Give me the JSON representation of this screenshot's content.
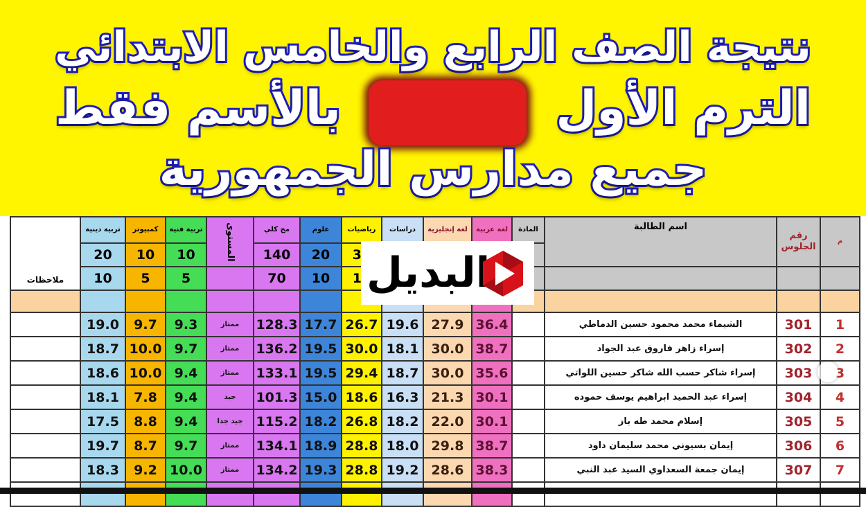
{
  "banner": {
    "line1": "نتيجة الصف الرابع والخامس الابتدائي",
    "line2_right": "الترم الأول",
    "line2_left": "بالأسم فقط",
    "line3": "جميع مدارس الجمهورية",
    "background": "#fff500",
    "text_outline": "#1f1fc0",
    "redaction_color": "#e21d1d"
  },
  "logo": {
    "text": "البديل",
    "icon": "red-hexagon-play-icon"
  },
  "table": {
    "headers": {
      "notes": "ملاحظات",
      "religion": "تربية دينية",
      "computer": "كمبيوتر",
      "art": "تربية فنية",
      "level": "المستوى",
      "total": "مج كلي",
      "science": "علوم",
      "math": "رياضيات",
      "studies": "دراسات",
      "english": "لغة إنجليزية",
      "arabic": "لغة عربية",
      "subject": "المادة",
      "name": "اسم الطالبة",
      "seat": "رقم الجلوس",
      "index": "م"
    },
    "max_marks": {
      "religion": "20",
      "computer": "10",
      "art": "10",
      "total": "140",
      "science": "20",
      "math": "30"
    },
    "min_marks": {
      "religion": "10",
      "computer": "5",
      "art": "5",
      "total": "70",
      "science": "10",
      "math": "15"
    },
    "column_colors": {
      "religion": "#a8d8ee",
      "computer": "#f7b500",
      "art": "#44dd55",
      "level": "#d877f0",
      "total": "#d877f0",
      "science": "#3d85d8",
      "math": "#fff200",
      "studies": "#c9dff5",
      "english": "#fbd8b0",
      "arabic": "#f070c0"
    },
    "rows": [
      {
        "index": "1",
        "seat": "301",
        "name": "الشيماء محمد محمود حسين الدماطي",
        "arabic": "36.4",
        "english": "27.9",
        "studies": "19.6",
        "math": "26.7",
        "science": "17.7",
        "total": "128.3",
        "level": "ممتاز",
        "art": "9.3",
        "computer": "9.7",
        "religion": "19.0"
      },
      {
        "index": "2",
        "seat": "302",
        "name": "إسراء زاهر فاروق عبد الجواد",
        "arabic": "38.7",
        "english": "30.0",
        "studies": "18.1",
        "math": "30.0",
        "science": "19.5",
        "total": "136.2",
        "level": "ممتاز",
        "art": "9.7",
        "computer": "10.0",
        "religion": "18.7"
      },
      {
        "index": "3",
        "seat": "303",
        "name": "إسراء شاكر حسب الله شاكر حسين اللواتي",
        "arabic": "35.6",
        "english": "30.0",
        "studies": "18.7",
        "math": "29.4",
        "science": "19.5",
        "total": "133.1",
        "level": "ممتاز",
        "art": "9.4",
        "computer": "10.0",
        "religion": "18.6"
      },
      {
        "index": "4",
        "seat": "304",
        "name": "إسراء عبد الحميد ابراهيم يوسف حموده",
        "arabic": "30.1",
        "english": "21.3",
        "studies": "16.3",
        "math": "18.6",
        "science": "15.0",
        "total": "101.3",
        "level": "جيد",
        "art": "9.4",
        "computer": "7.8",
        "religion": "18.1"
      },
      {
        "index": "5",
        "seat": "305",
        "name": "إسلام محمد طه باز",
        "arabic": "30.1",
        "english": "22.0",
        "studies": "18.2",
        "math": "26.8",
        "science": "18.2",
        "total": "115.2",
        "level": "جيد جدا",
        "art": "9.4",
        "computer": "8.8",
        "religion": "17.5"
      },
      {
        "index": "6",
        "seat": "306",
        "name": "إيمان بسيوني محمد سليمان داود",
        "arabic": "38.7",
        "english": "29.8",
        "studies": "18.0",
        "math": "28.8",
        "science": "18.9",
        "total": "134.1",
        "level": "ممتاز",
        "art": "9.7",
        "computer": "8.7",
        "religion": "19.7"
      },
      {
        "index": "7",
        "seat": "307",
        "name": "إيمان جمعة السعداوي السيد عبد النبي",
        "arabic": "38.3",
        "english": "28.6",
        "studies": "19.2",
        "math": "28.8",
        "science": "19.3",
        "total": "134.2",
        "level": "ممتاز",
        "art": "10.0",
        "computer": "9.2",
        "religion": "18.3"
      }
    ]
  }
}
